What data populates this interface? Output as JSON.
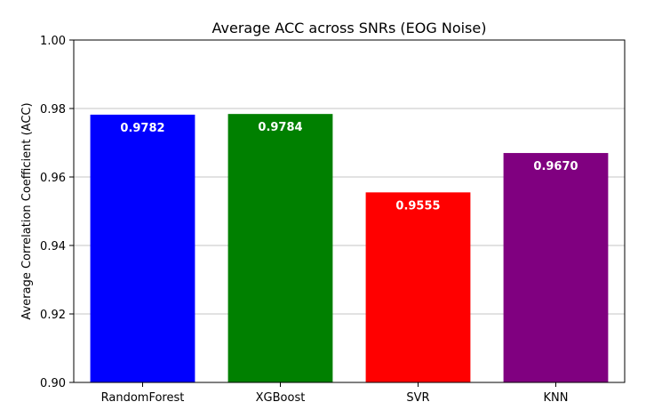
{
  "chart_data": {
    "type": "bar",
    "title": "Average ACC across SNRs (EOG Noise)",
    "xlabel": "",
    "ylabel": "Average Correlation Coefficient (ACC)",
    "categories": [
      "RandomForest",
      "XGBoost",
      "SVR",
      "KNN"
    ],
    "values": [
      0.9782,
      0.9784,
      0.9555,
      0.967
    ],
    "value_labels": [
      "0.9782",
      "0.9784",
      "0.9555",
      "0.9670"
    ],
    "colors": [
      "#0000ff",
      "#008000",
      "#ff0000",
      "#800080"
    ],
    "ylim": [
      0.9,
      1.0
    ],
    "yticks": [
      0.9,
      0.92,
      0.94,
      0.96,
      0.98,
      1.0
    ],
    "ytick_labels": [
      "0.90",
      "0.92",
      "0.94",
      "0.96",
      "0.98",
      "1.00"
    ],
    "grid": "y-axis"
  }
}
